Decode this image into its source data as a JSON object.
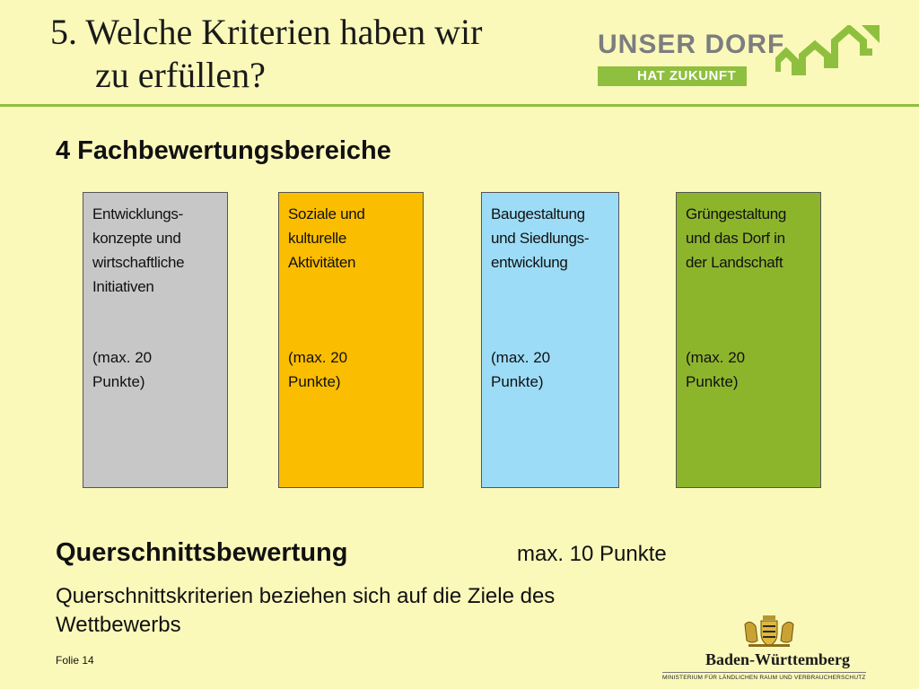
{
  "title": {
    "line1": "5. Welche Kriterien haben wir",
    "line2": "zu erfüllen?"
  },
  "logo": {
    "line1": "UNSER DORF",
    "line2": "HAT ZUKUNFT",
    "accent_color": "#8fbf3f",
    "text_color": "#7c7d80"
  },
  "subtitle": "4 Fachbewertungsbereiche",
  "areas": [
    {
      "label": "Entwicklungs-\nkonzepte und\nwirtschaftliche\nInitiativen",
      "points": "(max. 20\nPunkte)",
      "color": "#c7c7c7"
    },
    {
      "label": "Soziale und\nkulturelle\nAktivitäten",
      "points": "(max. 20\nPunkte)",
      "color": "#fbbd00"
    },
    {
      "label": "Baugestaltung\nund Siedlungs-\nentwicklung",
      "points": "(max. 20\nPunkte)",
      "color": "#9ddcf7"
    },
    {
      "label": "Grüngestaltung\nund das Dorf in\nder Landschaft",
      "points": "(max. 20\nPunkte)",
      "color": "#8db52c"
    }
  ],
  "cross_section": {
    "heading": "Querschnittsbewertung",
    "max": "max. 10 Punkte",
    "description": "Querschnittskriterien beziehen sich auf die Ziele des Wettbewerbs"
  },
  "footer": {
    "slide": "Folie 14",
    "state": "Baden-Württemberg",
    "ministry": "MINISTERIUM FÜR LÄNDLICHEN RAUM UND VERBRAUCHERSCHUTZ"
  },
  "background_color": "#fbf9ba"
}
